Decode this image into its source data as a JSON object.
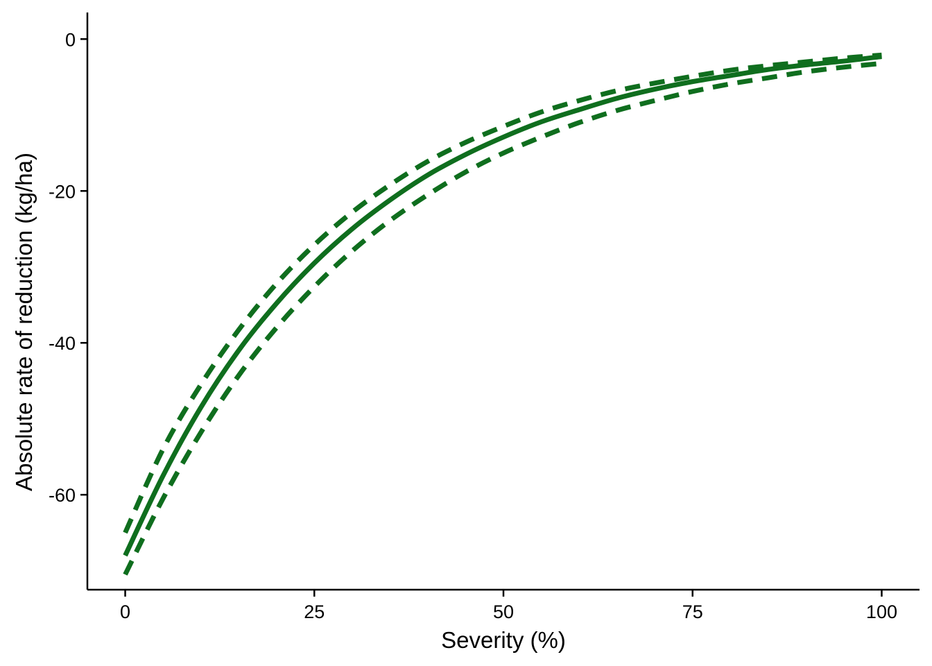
{
  "chart_data": {
    "type": "line",
    "title": "",
    "xlabel": "Severity (%)",
    "ylabel": "Absolute rate of reduction (kg/ha)",
    "xlim": [
      -5,
      105
    ],
    "ylim": [
      -72.5,
      3.5
    ],
    "x_ticks": [
      0,
      25,
      50,
      75,
      100
    ],
    "y_ticks": [
      -60,
      -40,
      -20,
      0
    ],
    "grid": false,
    "legend": "none",
    "color": "#0f6e1e",
    "x": [
      0,
      5,
      10,
      15,
      20,
      25,
      30,
      35,
      40,
      45,
      50,
      55,
      60,
      65,
      70,
      75,
      80,
      85,
      90,
      95,
      100
    ],
    "series": [
      {
        "style": "solid",
        "values": [
          -68,
          -57.5,
          -48.5,
          -41,
          -34.8,
          -29.5,
          -25,
          -21.2,
          -17.9,
          -15.2,
          -12.9,
          -10.9,
          -9.3,
          -7.8,
          -6.6,
          -5.6,
          -4.8,
          -4.0,
          -3.4,
          -2.9,
          -2.3
        ]
      },
      {
        "style": "dashed",
        "values": [
          -65,
          -54,
          -45.5,
          -38.3,
          -32.2,
          -27.1,
          -22.8,
          -19.2,
          -16.1,
          -13.6,
          -11.5,
          -9.6,
          -8.1,
          -6.8,
          -5.8,
          -4.9,
          -4.1,
          -3.5,
          -3.0,
          -2.5,
          -2.1
        ]
      },
      {
        "style": "dashed",
        "values": [
          -70.5,
          -60.5,
          -51.8,
          -44.3,
          -38,
          -32.6,
          -27.9,
          -23.9,
          -20.5,
          -17.5,
          -15.0,
          -12.9,
          -11.0,
          -9.4,
          -8.1,
          -6.9,
          -5.9,
          -5.1,
          -4.3,
          -3.7,
          -3.2
        ]
      }
    ]
  }
}
